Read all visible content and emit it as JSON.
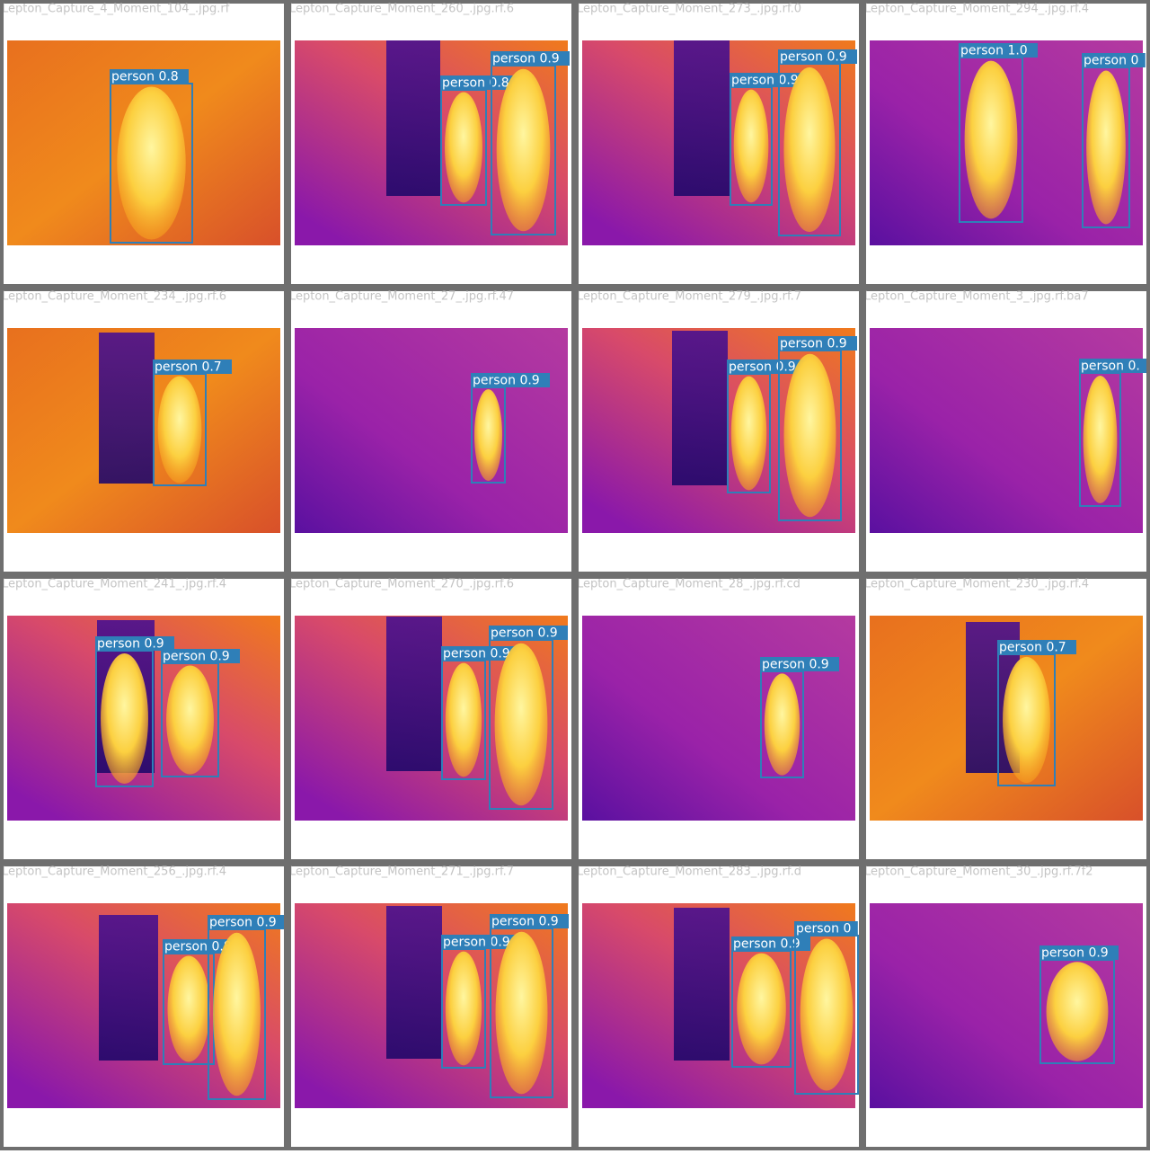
{
  "tiles": [
    {
      "title": "Lepton_Capture_4_Moment_104_.jpg.rf",
      "detections": [
        "person 0.8"
      ]
    },
    {
      "title": "Lepton_Capture_Moment_260_.jpg.rf.6",
      "detections": [
        "person 0.8",
        "person 0.9"
      ]
    },
    {
      "title": "Lepton_Capture_Moment_273_.jpg.rf.0",
      "detections": [
        "person 0.9",
        "person 0.9"
      ]
    },
    {
      "title": "Lepton_Capture_Moment_294_.jpg.rf.4",
      "detections": [
        "person 1.0",
        "person 0"
      ]
    },
    {
      "title": "Lepton_Capture_Moment_234_.jpg.rf.6",
      "detections": [
        "person 0.7"
      ]
    },
    {
      "title": "Lepton_Capture_Moment_27_.jpg.rf.47",
      "detections": [
        "person 0.9"
      ]
    },
    {
      "title": "Lepton_Capture_Moment_279_.jpg.rf.7",
      "detections": [
        "person 0.9",
        "person 0.9"
      ]
    },
    {
      "title": "Lepton_Capture_Moment_3_.jpg.rf.ba7",
      "detections": [
        "person 0."
      ]
    },
    {
      "title": "Lepton_Capture_Moment_241_.jpg.rf.4",
      "detections": [
        "person 0.9",
        "person 0.9"
      ]
    },
    {
      "title": "Lepton_Capture_Moment_270_.jpg.rf.6",
      "detections": [
        "person 0.9",
        "person 0.9"
      ]
    },
    {
      "title": "Lepton_Capture_Moment_28_.jpg.rf.cd",
      "detections": [
        "person 0.9"
      ]
    },
    {
      "title": "Lepton_Capture_Moment_230_.jpg.rf.4",
      "detections": [
        "person 0.7"
      ]
    },
    {
      "title": "Lepton_Capture_Moment_256_.jpg.rf.4",
      "detections": [
        "person 0.8",
        "person 0.9"
      ]
    },
    {
      "title": "Lepton_Capture_Moment_271_.jpg.rf.7",
      "detections": [
        "person 0.9",
        "person 0.9"
      ]
    },
    {
      "title": "Lepton_Capture_Moment_283_.jpg.rf.d",
      "detections": [
        "person 0.9",
        "person 0"
      ]
    },
    {
      "title": "Lepton_Capture_Moment_30_.jpg.rf.7f2",
      "detections": [
        "person 0.9"
      ]
    }
  ]
}
